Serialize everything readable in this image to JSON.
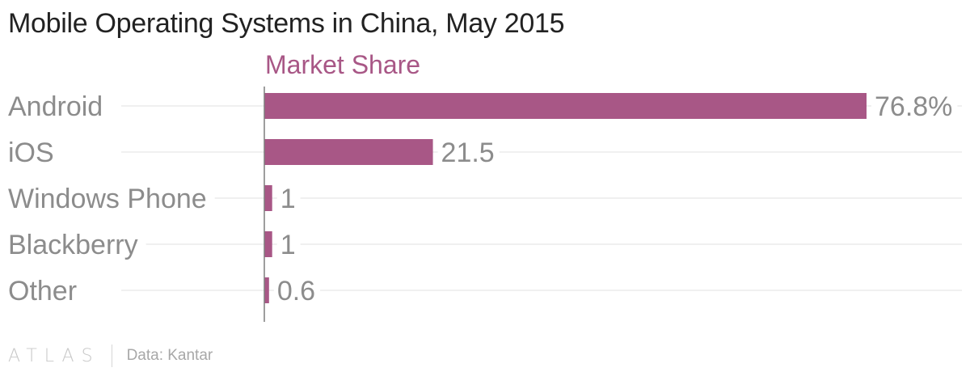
{
  "title": "Mobile Operating Systems in China, May 2015",
  "brand": "ATLAS",
  "source": "Data: Kantar",
  "colors": {
    "bar": "#a85786",
    "series_label": "#a85786",
    "category_text": "#8c8c8c",
    "value_text": "#8c8c8c",
    "gridline": "#ebebeb",
    "axis": "#7f7f7f"
  },
  "chart_data": {
    "type": "bar",
    "orientation": "horizontal",
    "series": [
      {
        "name": "Market Share",
        "values": [
          76.8,
          21.5,
          1,
          1,
          0.6
        ],
        "labels": [
          "76.8%",
          "21.5",
          "1",
          "1",
          "0.6"
        ]
      }
    ],
    "categories": [
      "Android",
      "iOS",
      "Windows Phone",
      "Blackberry",
      "Other"
    ],
    "xlim": [
      0,
      76.8
    ],
    "grid": true
  }
}
